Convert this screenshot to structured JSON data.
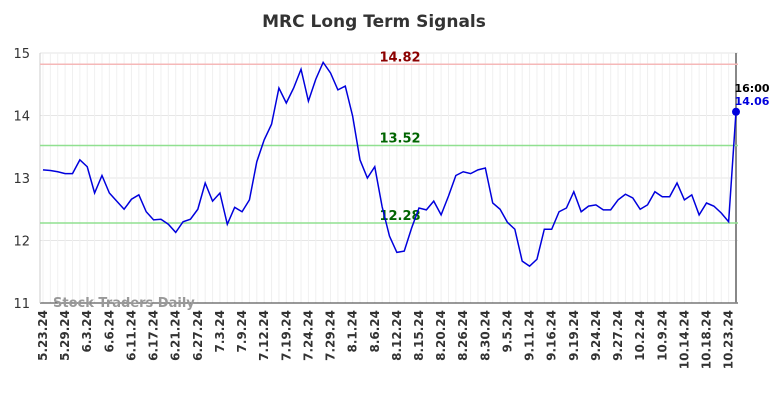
{
  "chart_data": {
    "type": "line",
    "title": "MRC Long Term Signals",
    "watermark": "Stock Traders Daily",
    "categories": [
      "5.23.24",
      null,
      null,
      "5.29.24",
      null,
      null,
      "6.3.24",
      null,
      null,
      "6.6.24",
      null,
      null,
      "6.11.24",
      null,
      null,
      "6.17.24",
      null,
      null,
      "6.21.24",
      null,
      null,
      "6.27.24",
      null,
      null,
      "7.3.24",
      null,
      null,
      "7.9.24",
      null,
      null,
      "7.12.24",
      null,
      null,
      "7.19.24",
      null,
      null,
      "7.24.24",
      null,
      null,
      "7.29.24",
      null,
      null,
      "8.1.24",
      null,
      null,
      "8.6.24",
      null,
      null,
      "8.12.24",
      null,
      null,
      "8.15.24",
      null,
      null,
      "8.20.24",
      null,
      null,
      "8.26.24",
      null,
      null,
      "8.30.24",
      null,
      null,
      "9.5.24",
      null,
      null,
      "9.11.24",
      null,
      null,
      "9.16.24",
      null,
      null,
      "9.19.24",
      null,
      null,
      "9.24.24",
      null,
      null,
      "9.27.24",
      null,
      null,
      "10.2.24",
      null,
      null,
      "10.9.24",
      null,
      null,
      "10.14.24",
      null,
      null,
      "10.18.24",
      null,
      null,
      "10.23.24",
      null
    ],
    "values": [
      13.13,
      13.12,
      13.1,
      13.07,
      13.07,
      13.29,
      13.18,
      12.76,
      13.04,
      12.76,
      12.63,
      12.5,
      12.66,
      12.73,
      12.46,
      12.33,
      12.34,
      12.26,
      12.13,
      12.3,
      12.34,
      12.5,
      12.92,
      12.63,
      12.76,
      12.26,
      12.53,
      12.46,
      12.65,
      13.26,
      13.61,
      13.86,
      14.44,
      14.2,
      14.44,
      14.74,
      14.23,
      14.58,
      14.85,
      14.68,
      14.41,
      14.47,
      13.99,
      13.29,
      13.0,
      13.18,
      12.54,
      12.07,
      11.81,
      11.83,
      12.2,
      12.52,
      12.49,
      12.63,
      12.41,
      12.71,
      13.04,
      13.1,
      13.07,
      13.13,
      13.16,
      12.6,
      12.5,
      12.29,
      12.18,
      11.67,
      11.59,
      11.7,
      12.18,
      12.18,
      12.46,
      12.52,
      12.78,
      12.46,
      12.55,
      12.57,
      12.49,
      12.49,
      12.65,
      12.74,
      12.68,
      12.5,
      12.57,
      12.78,
      12.7,
      12.7,
      12.92,
      12.65,
      12.73,
      12.41,
      12.6,
      12.55,
      12.44,
      12.3,
      14.06
    ],
    "color": "#0000dd",
    "ylim": [
      11,
      15
    ],
    "yticks": [
      11,
      12,
      13,
      14,
      15
    ],
    "grid": true,
    "levels": [
      {
        "value": 14.82,
        "color": "#8b0000",
        "line_color": "#f5b8b8"
      },
      {
        "value": 13.52,
        "color": "#006400",
        "line_color": "#90e090"
      },
      {
        "value": 12.28,
        "color": "#006400",
        "line_color": "#90e090"
      }
    ],
    "last_time": "16:00"
  }
}
